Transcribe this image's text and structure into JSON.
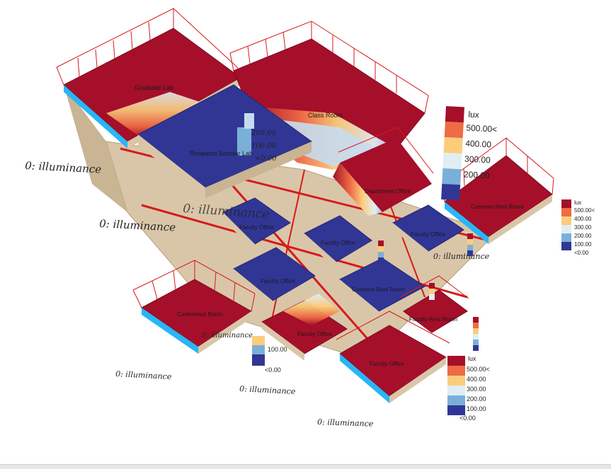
{
  "viewport_labels": [
    "0: illuminance",
    "0: illuminance",
    "0: illuminance",
    "0: illuminance",
    "0: illuminance",
    "0: illuminance",
    "0: illuminance",
    "0: illuminance"
  ],
  "rooms": {
    "graduate_lab": "Graduate Lab",
    "class_room": "Class Room",
    "research_lab": "Research Scholar Lab",
    "department_office": "Department Office",
    "common_rest_room_right": "Common Rest Room",
    "faculty_office_a": "Faculty Office",
    "faculty_office_b": "Faculty Office",
    "faculty_office_c": "Faculty Office",
    "faculty_office_d": "Faculty Office",
    "common_rest_room_mid": "Common Rest Room",
    "conference_room": "Conference Room",
    "faculty_office_e": "Faculty Office",
    "faculty_rest_room": "Faculty Rest Room",
    "faculty_office_f": "Faculty Office"
  },
  "legend": {
    "unit": "lux",
    "ticks": [
      "500.00<",
      "400.00",
      "300.00",
      "200.00",
      "100.00",
      "<0.00"
    ],
    "colors": [
      "#a50f2a",
      "#ee6b45",
      "#fbcd7b",
      "#e0eef4",
      "#7ab0d8",
      "#313695"
    ]
  },
  "overlay_ticks": [
    "200.00",
    "100.00",
    "<0.00"
  ],
  "colors": {
    "frame": "#d7191c",
    "bright": "#a50f2a",
    "dark": "#313695",
    "floor": "#d9c6a8",
    "cyan": "#29b6f6"
  }
}
